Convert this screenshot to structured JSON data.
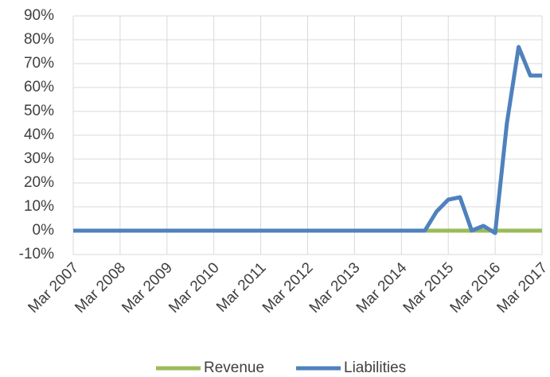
{
  "chart_data": {
    "type": "line",
    "categories": [
      "Mar 2007",
      null,
      null,
      null,
      "Mar 2008",
      null,
      null,
      null,
      "Mar 2009",
      null,
      null,
      null,
      "Mar 2010",
      null,
      null,
      null,
      "Mar 2011",
      null,
      null,
      null,
      "Mar 2012",
      null,
      null,
      null,
      "Mar 2013",
      null,
      null,
      null,
      "Mar 2014",
      null,
      null,
      null,
      "Mar 2015",
      null,
      null,
      null,
      "Mar 2016",
      null,
      null,
      null,
      "Mar 2017"
    ],
    "series": [
      {
        "name": "Revenue",
        "color": "#9bbb59",
        "values": [
          0,
          0,
          0,
          0,
          0,
          0,
          0,
          0,
          0,
          0,
          0,
          0,
          0,
          0,
          0,
          0,
          0,
          0,
          0,
          0,
          0,
          0,
          0,
          0,
          0,
          0,
          0,
          0,
          0,
          0,
          0,
          0,
          0,
          0,
          0,
          0,
          0,
          0,
          0,
          0,
          0
        ]
      },
      {
        "name": "Liabilities",
        "color": "#4f81bd",
        "values": [
          0,
          0,
          0,
          0,
          0,
          0,
          0,
          0,
          0,
          0,
          0,
          0,
          0,
          0,
          0,
          0,
          0,
          0,
          0,
          0,
          0,
          0,
          0,
          0,
          0,
          0,
          0,
          0,
          0,
          0,
          0,
          8,
          13,
          14,
          0,
          2,
          -1,
          45,
          77,
          65,
          65
        ]
      }
    ],
    "ylim": [
      -10,
      90
    ],
    "yticks": [
      {
        "value": -10,
        "label": "-10%"
      },
      {
        "value": 0,
        "label": "0%"
      },
      {
        "value": 10,
        "label": "10%"
      },
      {
        "value": 20,
        "label": "20%"
      },
      {
        "value": 30,
        "label": "30%"
      },
      {
        "value": 40,
        "label": "40%"
      },
      {
        "value": 50,
        "label": "50%"
      },
      {
        "value": 60,
        "label": "60%"
      },
      {
        "value": 70,
        "label": "70%"
      },
      {
        "value": 80,
        "label": "80%"
      },
      {
        "value": 90,
        "label": "90%"
      }
    ],
    "grid": true,
    "legend": "bottom"
  }
}
